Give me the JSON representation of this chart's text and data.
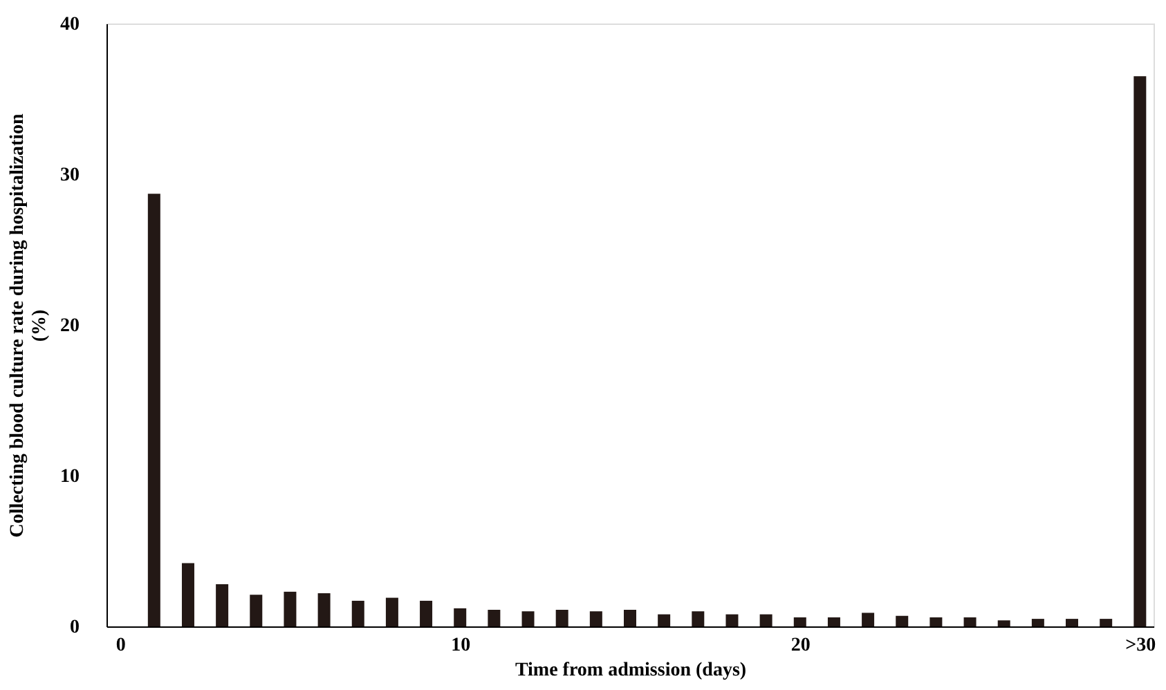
{
  "chart_data": {
    "type": "bar",
    "xlabel": "Time from admission (days)",
    "ylabel": "Collecting blood culture rate during hospitalization\n(%)",
    "x": [
      1,
      2,
      3,
      4,
      5,
      6,
      7,
      8,
      9,
      10,
      11,
      12,
      13,
      14,
      15,
      16,
      17,
      18,
      19,
      20,
      21,
      22,
      23,
      24,
      25,
      26,
      27,
      28,
      29,
      30
    ],
    "values": [
      28.7,
      4.2,
      2.8,
      2.1,
      2.3,
      2.2,
      1.7,
      1.9,
      1.7,
      1.2,
      1.1,
      1.0,
      1.1,
      1.0,
      1.1,
      0.8,
      1.0,
      0.8,
      0.8,
      0.6,
      0.6,
      0.9,
      0.7,
      0.6,
      0.6,
      0.4,
      0.5,
      0.5,
      0.5,
      36.5
    ],
    "color": "#231815",
    "xlim": [
      -0.4,
      30.4
    ],
    "xticks": [
      0,
      10,
      20,
      {
        "value": 30,
        "label": ">30"
      }
    ],
    "ylim": [
      0,
      40
    ],
    "yticks": [
      0,
      10,
      20,
      30,
      40
    ],
    "grid": false
  }
}
